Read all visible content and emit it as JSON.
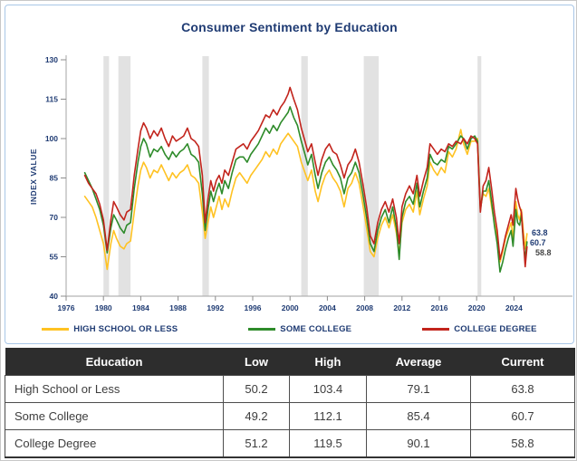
{
  "title": "Consumer Sentiment by Education",
  "chart_data": {
    "type": "line",
    "title": "Consumer Sentiment by Education",
    "xlabel": "",
    "ylabel": "INDEX VALUE",
    "ylim": [
      40,
      130
    ],
    "yticks": [
      40,
      55,
      70,
      85,
      100,
      115,
      130
    ],
    "xticks": [
      1976,
      1980,
      1984,
      1988,
      1992,
      1996,
      2000,
      2004,
      2008,
      2012,
      2016,
      2020,
      2024
    ],
    "grid": false,
    "legend_position": "bottom",
    "band_color": "#e2e2e2",
    "axis_color": "#b3b3b3",
    "tick_color": "#8c8c8c",
    "recessions": [
      [
        1980.0,
        1980.6
      ],
      [
        1981.6,
        1982.9
      ],
      [
        1990.6,
        1991.3
      ],
      [
        2001.2,
        2001.9
      ],
      [
        2007.9,
        2009.5
      ],
      [
        2020.1,
        2020.5
      ]
    ],
    "x": [
      1978.0,
      1978.4,
      1978.8,
      1979.2,
      1979.6,
      1980.0,
      1980.4,
      1980.8,
      1981.1,
      1981.4,
      1981.8,
      1982.2,
      1982.5,
      1982.9,
      1983.3,
      1983.7,
      1984.0,
      1984.3,
      1984.6,
      1985.0,
      1985.4,
      1985.8,
      1986.2,
      1986.6,
      1987.0,
      1987.4,
      1987.8,
      1988.2,
      1988.6,
      1989.0,
      1989.4,
      1989.8,
      1990.2,
      1990.6,
      1990.9,
      1991.2,
      1991.5,
      1991.8,
      1992.1,
      1992.4,
      1992.7,
      1993.0,
      1993.4,
      1993.8,
      1994.2,
      1994.6,
      1995.0,
      1995.4,
      1995.8,
      1996.2,
      1996.6,
      1997.0,
      1997.4,
      1997.8,
      1998.2,
      1998.6,
      1999.0,
      1999.4,
      1999.8,
      2000.0,
      2000.4,
      2000.8,
      2001.2,
      2001.6,
      2001.9,
      2002.3,
      2002.7,
      2003.0,
      2003.4,
      2003.8,
      2004.2,
      2004.6,
      2005.0,
      2005.4,
      2005.8,
      2006.2,
      2006.6,
      2007.0,
      2007.4,
      2007.8,
      2008.2,
      2008.6,
      2009.0,
      2009.4,
      2009.8,
      2010.2,
      2010.6,
      2011.0,
      2011.4,
      2011.7,
      2012.0,
      2012.4,
      2012.8,
      2013.2,
      2013.6,
      2013.9,
      2014.3,
      2014.7,
      2015.0,
      2015.4,
      2015.8,
      2016.2,
      2016.6,
      2017.0,
      2017.4,
      2017.8,
      2018.3,
      2018.6,
      2019.0,
      2019.4,
      2019.8,
      2020.1,
      2020.4,
      2020.7,
      2021.0,
      2021.3,
      2021.6,
      2021.9,
      2022.2,
      2022.5,
      2022.8,
      2023.1,
      2023.4,
      2023.7,
      2023.9,
      2024.2,
      2024.4,
      2024.6,
      2024.8,
      2025.0,
      2025.2,
      2025.4
    ],
    "series": [
      {
        "name": "HIGH SCHOOL OR LESS",
        "color": "#FFC222",
        "values": [
          78,
          76,
          74,
          70,
          65,
          60,
          50.2,
          60,
          65,
          62,
          59,
          58,
          60,
          61,
          72,
          82,
          88,
          91,
          89,
          85,
          88,
          87,
          90,
          87,
          84,
          87,
          85,
          87,
          88,
          90,
          86,
          85,
          83,
          72,
          62,
          68,
          74,
          70,
          74,
          78,
          73,
          77,
          74,
          80,
          85,
          87,
          85,
          83,
          86,
          88,
          90,
          92,
          95,
          93,
          96,
          94,
          98,
          100,
          102,
          101,
          99,
          97,
          91,
          87,
          84,
          88,
          80,
          76,
          82,
          86,
          88,
          85,
          83,
          80,
          74,
          81,
          83,
          87,
          83,
          75,
          66,
          57,
          55,
          62,
          67,
          70,
          66,
          71,
          64,
          56,
          68,
          73,
          75,
          72,
          80,
          71,
          77,
          82,
          91,
          88,
          86,
          89,
          87,
          95,
          93,
          96,
          103.4,
          98,
          94,
          99,
          99,
          100,
          74,
          79,
          78,
          81,
          74,
          68,
          62,
          53,
          57,
          62,
          65,
          68,
          62,
          76,
          71,
          69,
          73,
          65,
          58,
          63.8
        ]
      },
      {
        "name": "SOME COLLEGE",
        "color": "#2E8B2A",
        "values": [
          87,
          84,
          81,
          77,
          73,
          67,
          56.5,
          66,
          71,
          69,
          66,
          64,
          67,
          68,
          81,
          91,
          97,
          100,
          98,
          93,
          96,
          95,
          97,
          94,
          92,
          95,
          93,
          95,
          96,
          98,
          94,
          93,
          91,
          79,
          65,
          73,
          80,
          76,
          80,
          83,
          79,
          84,
          81,
          87,
          92,
          93,
          93,
          91,
          94,
          96,
          98,
          101,
          104,
          102,
          105,
          103,
          106,
          108,
          110,
          112.1,
          108,
          105,
          99,
          94,
          90,
          94,
          86,
          81,
          87,
          91,
          93,
          90,
          88,
          85,
          79,
          85,
          87,
          91,
          87,
          79,
          70,
          60,
          57,
          65,
          70,
          73,
          68,
          74,
          66,
          54,
          70,
          76,
          78,
          75,
          83,
          74,
          80,
          85,
          94,
          91,
          90,
          92,
          91,
          97,
          96,
          98,
          101,
          100,
          96,
          100,
          101,
          99,
          73,
          80,
          80,
          84,
          76,
          67,
          60,
          49.2,
          53,
          58,
          62,
          65,
          59,
          73,
          68,
          67,
          71,
          61,
          54,
          60.7
        ]
      },
      {
        "name": "COLLEGE DEGREE",
        "color": "#C2241C",
        "values": [
          86,
          83,
          81,
          79,
          75,
          69,
          57.5,
          69,
          76,
          74,
          71,
          69,
          72,
          73,
          86,
          96,
          103,
          106,
          104,
          100,
          103,
          101,
          104,
          100,
          97,
          101,
          99,
          100,
          101,
          104,
          100,
          99,
          97,
          86,
          68,
          77,
          84,
          80,
          84,
          86,
          83,
          88,
          86,
          91,
          96,
          97,
          98,
          96,
          99,
          101,
          103,
          106,
          109,
          108,
          111,
          109,
          112,
          114,
          117,
          119.5,
          115,
          111,
          104,
          99,
          95,
          98,
          91,
          86,
          92,
          96,
          98,
          95,
          94,
          90,
          85,
          90,
          92,
          96,
          91,
          83,
          74,
          63,
          60,
          68,
          73,
          76,
          72,
          77,
          70,
          60,
          74,
          79,
          82,
          79,
          86,
          78,
          84,
          89,
          98,
          96,
          94,
          96,
          95,
          98,
          97,
          99,
          98,
          100,
          98,
          101,
          100,
          98,
          72,
          82,
          84,
          89,
          81,
          72,
          65,
          54,
          58,
          63,
          67,
          71,
          67,
          81,
          77,
          74,
          72,
          62,
          51.2,
          58.8
        ]
      }
    ],
    "end_labels": [
      {
        "text": "63.8",
        "color": "#1F3B73"
      },
      {
        "text": "60.7",
        "color": "#1F3B73"
      },
      {
        "text": "58.8",
        "color": "#454545"
      }
    ]
  },
  "table": {
    "headers": [
      "Education",
      "Low",
      "High",
      "Average",
      "Current"
    ],
    "rows": [
      [
        "High School or Less",
        "50.2",
        "103.4",
        "79.1",
        "63.8"
      ],
      [
        "Some College",
        "49.2",
        "112.1",
        "85.4",
        "60.7"
      ],
      [
        "College Degree",
        "51.2",
        "119.5",
        "90.1",
        "58.8"
      ]
    ]
  }
}
